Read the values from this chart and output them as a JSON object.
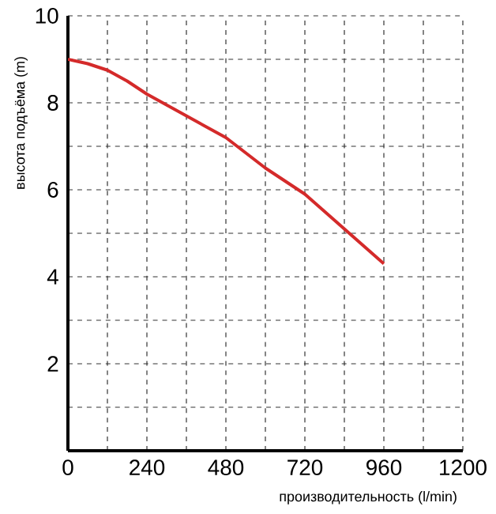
{
  "chart_data": {
    "type": "line",
    "xlabel": "производительность (l/min)",
    "ylabel": "высота подъёма (m)",
    "x": [
      0,
      60,
      120,
      180,
      240,
      300,
      360,
      420,
      480,
      540,
      600,
      660,
      720,
      780,
      840,
      900,
      960
    ],
    "series": [
      {
        "color": "#d42a2a",
        "values": [
          9.0,
          8.9,
          8.75,
          8.5,
          8.2,
          7.95,
          7.7,
          7.45,
          7.2,
          6.85,
          6.5,
          6.2,
          5.9,
          5.5,
          5.1,
          4.7,
          4.3
        ]
      }
    ],
    "xlim": [
      0,
      1200
    ],
    "ylim": [
      0,
      10
    ],
    "xticks": [
      0,
      {
        "value": 120,
        "label": null
      },
      240,
      {
        "value": 360,
        "label": null
      },
      480,
      {
        "value": 600,
        "label": null
      },
      720,
      {
        "value": 840,
        "label": null
      },
      960,
      {
        "value": 1080,
        "label": null
      },
      1200
    ],
    "yticks": [
      {
        "value": 1,
        "label": null
      },
      2,
      {
        "value": 3,
        "label": null
      },
      4,
      {
        "value": 5,
        "label": null
      },
      6,
      {
        "value": 7,
        "label": null
      },
      8,
      {
        "value": 9,
        "label": null
      },
      10
    ],
    "grid": true,
    "line_style": "solid",
    "marker": "none"
  }
}
